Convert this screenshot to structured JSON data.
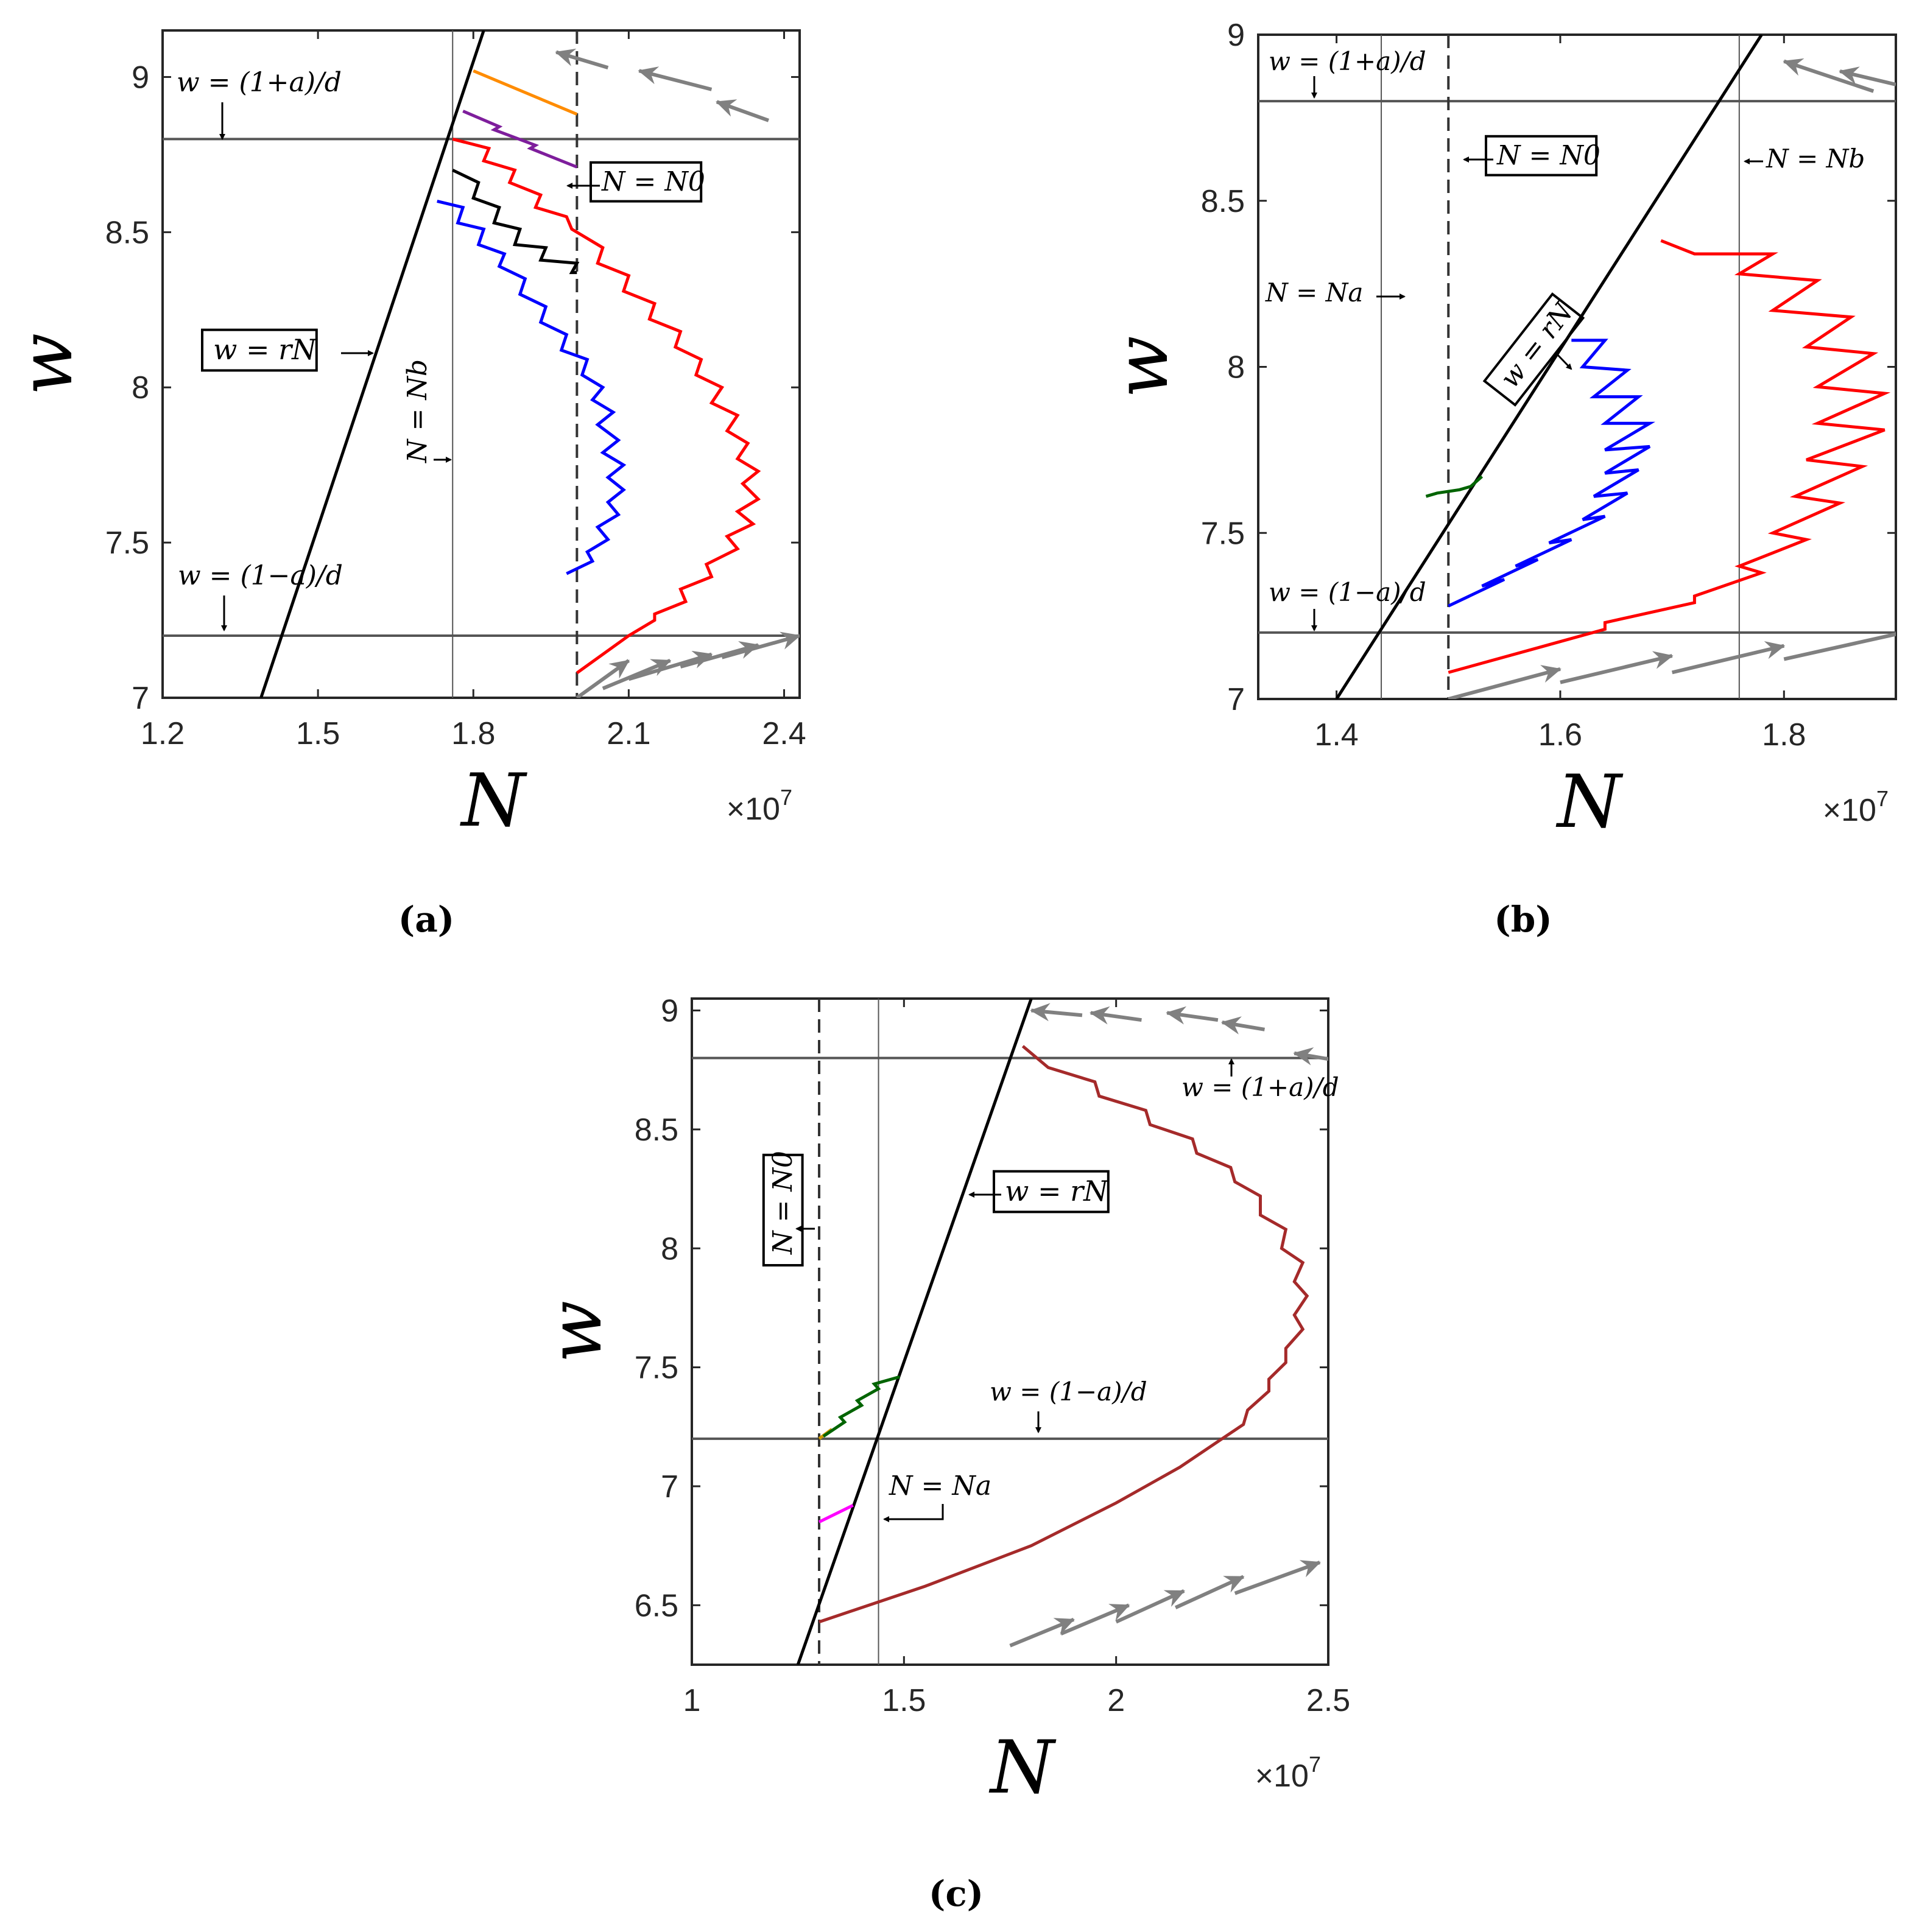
{
  "figure": {
    "panels": [
      {
        "id": "a",
        "caption": "(a)",
        "xlabel": "N",
        "ylabel": "w",
        "x_multiplier": "×10^7",
        "xlim": [
          1.2,
          2.43
        ],
        "ylim": [
          7.0,
          9.15
        ],
        "xticks": [
          1.2,
          1.5,
          1.8,
          2.1,
          2.4
        ],
        "xtick_labels": [
          "1.2",
          "1.5",
          "1.8",
          "2.1",
          "2.4"
        ],
        "yticks": [
          7.0,
          7.5,
          8.0,
          8.5,
          9.0
        ],
        "ytick_labels": [
          "7",
          "7.5",
          "8",
          "8.5",
          "9"
        ],
        "annotations": [
          {
            "text": "w = (1+a)/d",
            "boxed": false
          },
          {
            "text": "N = N0",
            "boxed": true
          },
          {
            "text": "w = rN",
            "boxed": true
          },
          {
            "text": "N = Nb",
            "boxed": false,
            "rotated": true
          },
          {
            "text": "w = (1−a)/d",
            "boxed": false
          }
        ]
      },
      {
        "id": "b",
        "caption": "(b)",
        "xlabel": "N",
        "ylabel": "w",
        "x_multiplier": "×10^7",
        "xlim": [
          1.33,
          1.9
        ],
        "ylim": [
          7.0,
          9.0
        ],
        "xticks": [
          1.4,
          1.6,
          1.8
        ],
        "xtick_labels": [
          "1.4",
          "1.6",
          "1.8"
        ],
        "yticks": [
          7.0,
          7.5,
          8.0,
          8.5,
          9.0
        ],
        "ytick_labels": [
          "7",
          "7.5",
          "8",
          "8.5",
          "9"
        ],
        "annotations": [
          {
            "text": "w = (1+a)/d",
            "boxed": false
          },
          {
            "text": "N = N0",
            "boxed": true
          },
          {
            "text": "N = Nb",
            "boxed": false
          },
          {
            "text": "N = Na",
            "boxed": false
          },
          {
            "text": "w = rN",
            "boxed": true,
            "rotated": true
          },
          {
            "text": "w = (1−a)/d",
            "boxed": false
          }
        ]
      },
      {
        "id": "c",
        "caption": "(c)",
        "xlabel": "N",
        "ylabel": "w",
        "x_multiplier": "×10^7",
        "xlim": [
          1.0,
          2.5
        ],
        "ylim": [
          6.25,
          9.05
        ],
        "xticks": [
          1.0,
          1.5,
          2.0,
          2.5
        ],
        "xtick_labels": [
          "1",
          "1.5",
          "2",
          "2.5"
        ],
        "yticks": [
          6.5,
          7.0,
          7.5,
          8.0,
          8.5,
          9.0
        ],
        "ytick_labels": [
          "6.5",
          "7",
          "7.5",
          "8",
          "8.5",
          "9"
        ],
        "annotations": [
          {
            "text": "N = N0",
            "boxed": true,
            "rotated": true
          },
          {
            "text": "w = rN",
            "boxed": true
          },
          {
            "text": "w = (1+a)/d",
            "boxed": false
          },
          {
            "text": "w = (1−a)/d",
            "boxed": false
          },
          {
            "text": "N = Na",
            "boxed": false
          }
        ]
      }
    ]
  },
  "chart_data": [
    {
      "type": "line",
      "panel": "a",
      "xlim": [
        1.2,
        2.43
      ],
      "ylim": [
        7.0,
        9.15
      ],
      "reference_lines": {
        "w_upper": 8.8,
        "w_lower": 7.2,
        "N0": 2.0,
        "Nb": 1.76,
        "w_eq_rN": [
          [
            1.39,
            7.0
          ],
          [
            1.82,
            9.15
          ]
        ]
      },
      "series": [
        {
          "color": "#ff8c00",
          "values": [
            [
              1.8,
              9.02
            ],
            [
              2.0,
              8.88
            ]
          ]
        },
        {
          "color": "#7e1e9c",
          "values": [
            [
              1.78,
              8.89
            ],
            [
              1.85,
              8.84
            ],
            [
              1.84,
              8.83
            ],
            [
              1.92,
              8.78
            ],
            [
              1.91,
              8.77
            ],
            [
              2.0,
              8.71
            ]
          ]
        },
        {
          "color": "#000000",
          "values": [
            [
              1.76,
              8.7
            ],
            [
              1.81,
              8.66
            ],
            [
              1.8,
              8.61
            ],
            [
              1.85,
              8.58
            ],
            [
              1.84,
              8.53
            ],
            [
              1.89,
              8.51
            ],
            [
              1.88,
              8.46
            ],
            [
              1.94,
              8.45
            ],
            [
              1.93,
              8.41
            ],
            [
              2.0,
              8.4
            ],
            [
              1.99,
              8.37
            ],
            [
              2.0,
              8.37
            ]
          ]
        },
        {
          "color": "#0000ff",
          "values": [
            [
              1.73,
              8.6
            ],
            [
              1.78,
              8.58
            ],
            [
              1.77,
              8.53
            ],
            [
              1.82,
              8.51
            ],
            [
              1.81,
              8.46
            ],
            [
              1.86,
              8.43
            ],
            [
              1.85,
              8.39
            ],
            [
              1.9,
              8.35
            ],
            [
              1.89,
              8.3
            ],
            [
              1.94,
              8.26
            ],
            [
              1.93,
              8.21
            ],
            [
              1.98,
              8.17
            ],
            [
              1.97,
              8.12
            ],
            [
              2.02,
              8.09
            ],
            [
              2.01,
              8.04
            ],
            [
              2.05,
              8.0
            ],
            [
              2.03,
              7.96
            ],
            [
              2.07,
              7.92
            ],
            [
              2.04,
              7.88
            ],
            [
              2.08,
              7.83
            ],
            [
              2.05,
              7.79
            ],
            [
              2.09,
              7.75
            ],
            [
              2.06,
              7.71
            ],
            [
              2.09,
              7.67
            ],
            [
              2.06,
              7.63
            ],
            [
              2.08,
              7.59
            ],
            [
              2.04,
              7.55
            ],
            [
              2.06,
              7.51
            ],
            [
              2.02,
              7.47
            ],
            [
              2.03,
              7.44
            ],
            [
              1.98,
              7.4
            ]
          ]
        },
        {
          "color": "#ff0000",
          "values": [
            [
              1.76,
              8.8
            ],
            [
              1.83,
              8.77
            ],
            [
              1.82,
              8.73
            ],
            [
              1.88,
              8.7
            ],
            [
              1.87,
              8.66
            ],
            [
              1.93,
              8.62
            ],
            [
              1.92,
              8.58
            ],
            [
              1.98,
              8.55
            ],
            [
              1.99,
              8.51
            ],
            [
              2.05,
              8.45
            ],
            [
              2.04,
              8.4
            ],
            [
              2.1,
              8.36
            ],
            [
              2.09,
              8.31
            ],
            [
              2.15,
              8.27
            ],
            [
              2.14,
              8.22
            ],
            [
              2.2,
              8.18
            ],
            [
              2.19,
              8.13
            ],
            [
              2.24,
              8.09
            ],
            [
              2.23,
              8.04
            ],
            [
              2.28,
              8.0
            ],
            [
              2.26,
              7.95
            ],
            [
              2.31,
              7.91
            ],
            [
              2.29,
              7.86
            ],
            [
              2.33,
              7.82
            ],
            [
              2.31,
              7.77
            ],
            [
              2.35,
              7.73
            ],
            [
              2.32,
              7.69
            ],
            [
              2.35,
              7.64
            ],
            [
              2.31,
              7.6
            ],
            [
              2.34,
              7.56
            ],
            [
              2.29,
              7.52
            ],
            [
              2.31,
              7.48
            ],
            [
              2.25,
              7.43
            ],
            [
              2.26,
              7.39
            ],
            [
              2.2,
              7.35
            ],
            [
              2.21,
              7.31
            ],
            [
              2.15,
              7.27
            ],
            [
              2.15,
              7.25
            ],
            [
              2.1,
              7.2
            ],
            [
              2.0,
              7.08
            ]
          ]
        }
      ]
    },
    {
      "type": "line",
      "panel": "b",
      "xlim": [
        1.33,
        1.9
      ],
      "ylim": [
        7.0,
        9.0
      ],
      "reference_lines": {
        "w_upper": 8.8,
        "w_lower": 7.2,
        "N0": 1.5,
        "Na": 1.44,
        "Nb": 1.76,
        "w_eq_rN": [
          [
            1.4,
            7.0
          ],
          [
            1.78,
            9.0
          ]
        ]
      },
      "series": [
        {
          "color": "#006400",
          "values": [
            [
              1.53,
              7.67
            ],
            [
              1.52,
              7.64
            ],
            [
              1.51,
              7.63
            ],
            [
              1.49,
              7.62
            ],
            [
              1.48,
              7.61
            ]
          ]
        },
        {
          "color": "#0000ff",
          "values": [
            [
              1.5,
              7.28
            ],
            [
              1.55,
              7.36
            ],
            [
              1.53,
              7.34
            ],
            [
              1.58,
              7.42
            ],
            [
              1.56,
              7.4
            ],
            [
              1.61,
              7.48
            ],
            [
              1.59,
              7.47
            ],
            [
              1.64,
              7.55
            ],
            [
              1.62,
              7.54
            ],
            [
              1.66,
              7.62
            ],
            [
              1.63,
              7.61
            ],
            [
              1.67,
              7.69
            ],
            [
              1.64,
              7.68
            ],
            [
              1.68,
              7.76
            ],
            [
              1.64,
              7.75
            ],
            [
              1.68,
              7.83
            ],
            [
              1.64,
              7.83
            ],
            [
              1.67,
              7.91
            ],
            [
              1.63,
              7.91
            ],
            [
              1.66,
              7.99
            ],
            [
              1.62,
              8.0
            ],
            [
              1.64,
              8.08
            ],
            [
              1.61,
              8.08
            ]
          ]
        },
        {
          "color": "#ff0000",
          "values": [
            [
              1.5,
              7.08
            ],
            [
              1.64,
              7.21
            ],
            [
              1.64,
              7.23
            ],
            [
              1.72,
              7.29
            ],
            [
              1.72,
              7.31
            ],
            [
              1.78,
              7.38
            ],
            [
              1.76,
              7.4
            ],
            [
              1.82,
              7.48
            ],
            [
              1.79,
              7.5
            ],
            [
              1.85,
              7.59
            ],
            [
              1.81,
              7.61
            ],
            [
              1.87,
              7.7
            ],
            [
              1.82,
              7.72
            ],
            [
              1.89,
              7.81
            ],
            [
              1.83,
              7.83
            ],
            [
              1.89,
              7.92
            ],
            [
              1.83,
              7.94
            ],
            [
              1.88,
              8.04
            ],
            [
              1.82,
              8.06
            ],
            [
              1.86,
              8.15
            ],
            [
              1.79,
              8.17
            ],
            [
              1.83,
              8.26
            ],
            [
              1.76,
              8.28
            ],
            [
              1.79,
              8.34
            ],
            [
              1.72,
              8.34
            ],
            [
              1.69,
              8.38
            ]
          ]
        }
      ]
    },
    {
      "type": "line",
      "panel": "c",
      "xlim": [
        1.0,
        2.5
      ],
      "ylim": [
        6.25,
        9.05
      ],
      "reference_lines": {
        "w_upper": 8.8,
        "w_lower": 7.2,
        "N0": 1.3,
        "Na": 1.44,
        "w_eq_rN": [
          [
            1.25,
            6.25
          ],
          [
            1.8,
            9.05
          ]
        ]
      },
      "series": [
        {
          "color": "#ff00ff",
          "values": [
            [
              1.3,
              6.85
            ],
            [
              1.38,
              6.92
            ]
          ]
        },
        {
          "color": "#cc9900",
          "values": [
            [
              1.3,
              7.2
            ],
            [
              1.33,
              7.24
            ]
          ]
        },
        {
          "color": "#006400",
          "values": [
            [
              1.31,
              7.21
            ],
            [
              1.36,
              7.27
            ],
            [
              1.35,
              7.29
            ],
            [
              1.4,
              7.34
            ],
            [
              1.39,
              7.36
            ],
            [
              1.44,
              7.41
            ],
            [
              1.43,
              7.43
            ],
            [
              1.49,
              7.46
            ]
          ]
        },
        {
          "color": "#a52a2a",
          "values": [
            [
              1.3,
              6.43
            ],
            [
              1.55,
              6.58
            ],
            [
              1.8,
              6.75
            ],
            [
              2.0,
              6.93
            ],
            [
              2.15,
              7.08
            ],
            [
              2.25,
              7.2
            ],
            [
              2.3,
              7.26
            ],
            [
              2.31,
              7.32
            ],
            [
              2.36,
              7.4
            ],
            [
              2.36,
              7.45
            ],
            [
              2.4,
              7.52
            ],
            [
              2.4,
              7.58
            ],
            [
              2.44,
              7.66
            ],
            [
              2.42,
              7.72
            ],
            [
              2.45,
              7.8
            ],
            [
              2.42,
              7.86
            ],
            [
              2.44,
              7.94
            ],
            [
              2.39,
              8.0
            ],
            [
              2.4,
              8.08
            ],
            [
              2.34,
              8.14
            ],
            [
              2.34,
              8.22
            ],
            [
              2.28,
              8.28
            ],
            [
              2.27,
              8.34
            ],
            [
              2.19,
              8.4
            ],
            [
              2.18,
              8.46
            ],
            [
              2.08,
              8.52
            ],
            [
              2.07,
              8.58
            ],
            [
              1.96,
              8.64
            ],
            [
              1.95,
              8.7
            ],
            [
              1.84,
              8.76
            ],
            [
              1.78,
              8.85
            ]
          ]
        }
      ]
    }
  ]
}
